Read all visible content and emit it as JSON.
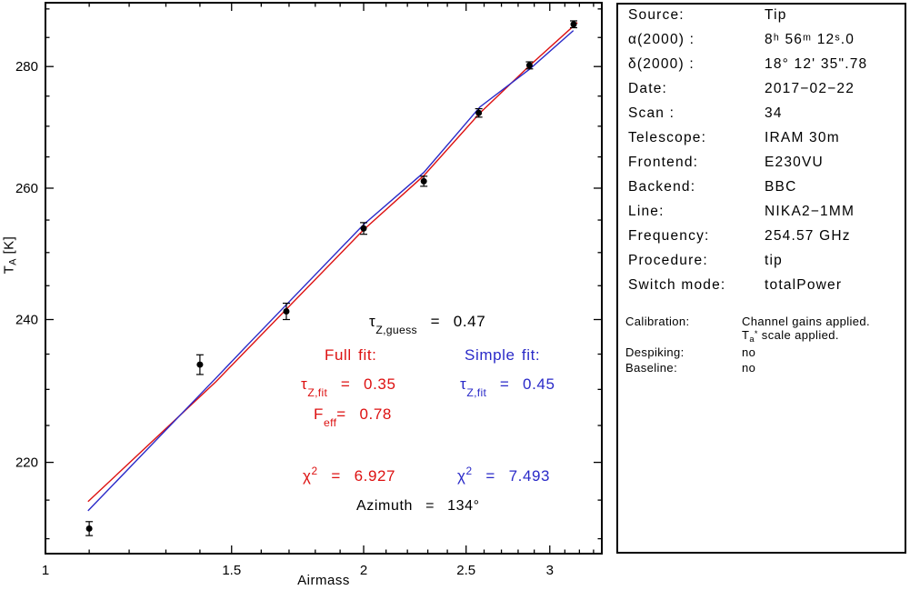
{
  "colors": {
    "fit_full_red": "#dd1111",
    "fit_simple_blue": "#2a2ac8",
    "data_black": "#000000"
  },
  "chart_data": {
    "type": "scatter",
    "title": "",
    "xlabel": "Airmass",
    "ylabel": "T_A [K]",
    "x_axis": {
      "scale": "log",
      "min": 1.0,
      "max": 3.36,
      "major_ticks": [
        1,
        1.5,
        2,
        2.5,
        3
      ],
      "tick_labels": [
        "1",
        "1.5",
        "2",
        "2.5",
        "3"
      ],
      "minor_step": 0.1
    },
    "y_axis": {
      "scale": "log",
      "min": 208.1,
      "max": 291.1,
      "major_ticks": [
        220,
        240,
        260,
        280
      ],
      "tick_labels": [
        "220",
        "240",
        "260",
        "280"
      ],
      "minor_step": 5
    },
    "points": [
      {
        "airmass": 1.1,
        "T": 211.3,
        "err": 0.9
      },
      {
        "airmass": 1.4,
        "T": 233.5,
        "err": 1.4
      },
      {
        "airmass": 1.69,
        "T": 241.2,
        "err": 1.2
      },
      {
        "airmass": 2.0,
        "T": 253.7,
        "err": 0.9
      },
      {
        "airmass": 2.28,
        "T": 261.1,
        "err": 0.8
      },
      {
        "airmass": 2.57,
        "T": 272.2,
        "err": 0.7
      },
      {
        "airmass": 2.87,
        "T": 280.2,
        "err": 0.6
      },
      {
        "airmass": 3.16,
        "T": 287.3,
        "err": 0.6
      }
    ],
    "fits": [
      {
        "name": "Full fit",
        "tau_fit": 0.35,
        "color": "#dd1111",
        "line": [
          [
            1.097,
            214.8
          ],
          [
            1.45,
            231.1
          ],
          [
            1.555,
            235.8
          ],
          [
            2.0,
            253.5
          ],
          [
            2.28,
            262.0
          ],
          [
            2.577,
            272.2
          ],
          [
            2.873,
            280.2
          ],
          [
            3.186,
            287.6
          ]
        ]
      },
      {
        "name": "Simple fit",
        "tau_fit": 0.45,
        "color": "#2a2ac8",
        "line": [
          [
            1.097,
            213.6
          ],
          [
            1.45,
            231.6
          ],
          [
            1.555,
            236.4
          ],
          [
            2.0,
            254.3
          ],
          [
            2.28,
            262.5
          ],
          [
            2.577,
            273.2
          ],
          [
            2.873,
            279.6
          ],
          [
            3.158,
            286.2
          ]
        ]
      }
    ]
  },
  "annotations": {
    "tau_guess": {
      "sym": "τ",
      "sub": "Z,guess",
      "rest": "  =  0.47"
    },
    "full_fit_label": "Full fit:",
    "simple_fit_label": "Simple fit:",
    "tau_fit_full": {
      "sym": "τ",
      "sub": "Z,fit",
      "rest": "  =  0.35"
    },
    "tau_fit_simple": {
      "sym": "τ",
      "sub": "Z,fit",
      "rest": "  =  0.45"
    },
    "feff": {
      "sym": "F",
      "sub": "eff",
      "rest": "=  0.78"
    },
    "chi2_full": {
      "sym": "χ",
      "sup": "2",
      "rest": "  =  6.927"
    },
    "chi2_simple": {
      "sym": "χ",
      "sup": "2",
      "rest": "  =  7.493"
    },
    "azimuth": "Azimuth  =  134°"
  },
  "panel": {
    "rows": [
      {
        "label": "Source:",
        "value": "Tip"
      },
      {
        "label": "α(2000) :",
        "value": "8ʰ 56ᵐ 12ˢ.0"
      },
      {
        "label": "δ(2000) :",
        "value": "18° 12' 35\".78"
      },
      {
        "label": "Date:",
        "value": "2017−02−22"
      },
      {
        "label": "Scan :",
        "value": "34"
      },
      {
        "label": "Telescope:",
        "value": "IRAM 30m"
      },
      {
        "label": "Frontend:",
        "value": "E230VU"
      },
      {
        "label": "Backend:",
        "value": "BBC"
      },
      {
        "label": "Line:",
        "value": "NIKA2−1MM"
      },
      {
        "label": "Frequency:",
        "value": "254.57 GHz"
      },
      {
        "label": "Procedure:",
        "value": "tip"
      },
      {
        "label": "Switch mode:",
        "value": "totalPower"
      }
    ],
    "calibration": {
      "label": "Calibration:",
      "line1": "Channel gains applied.",
      "line2_t": "T",
      "line2_sub": "a",
      "line2_sup": "*",
      "line2_rest": " scale applied."
    },
    "despiking": {
      "label": "Despiking:",
      "value": "no"
    },
    "baseline": {
      "label": "Baseline:",
      "value": "no"
    }
  }
}
